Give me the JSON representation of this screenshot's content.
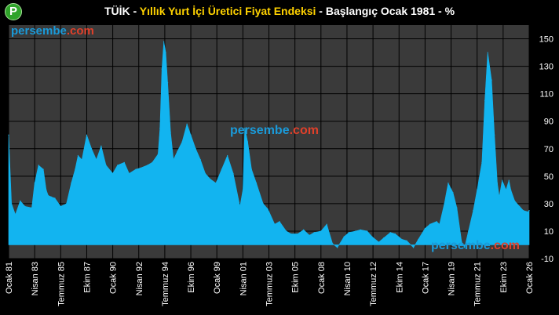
{
  "logo": {
    "glyph": "P",
    "color": "#2fa32a"
  },
  "title": {
    "part1": "TÜİK - ",
    "part2": "Yıllık Yurt İçi Üretici Fiyat Endeksi",
    "part3": " - Başlangıç Ocak 1981 - %"
  },
  "watermark": "persembe.com",
  "colors": {
    "background": "#000000",
    "plot_area": "#3a3a3a",
    "area_fill": "#12b4f0",
    "grid": "#000000",
    "title_accent": "#ffd200"
  },
  "chart_data": {
    "type": "area",
    "title": "TÜİK - Yıllık Yurt İçi Üretici Fiyat Endeksi - Başlangıç Ocak 1981 - %",
    "xlabel": "",
    "ylabel": "",
    "ylim": [
      -10,
      160
    ],
    "yticks": [
      -10,
      10,
      30,
      50,
      70,
      90,
      110,
      130,
      150
    ],
    "y_axis_position": "right",
    "grid": true,
    "x_tick_labels": [
      "Ocak 81",
      "Nisan 83",
      "Temmuz 85",
      "Ekim 87",
      "Ocak 90",
      "Nisan 92",
      "Temmuz 94",
      "Ekim 96",
      "Ocak 99",
      "Nisan 01",
      "Temmuz 03",
      "Ekim 05",
      "Ocak 08",
      "Nisan 10",
      "Temmuz 12",
      "Ekim 14",
      "Ocak 17",
      "Nisan 19",
      "Temmuz 21",
      "Ekim 23",
      "Ocak 26"
    ],
    "x": [
      "1981-01",
      "1981-04",
      "1981-08",
      "1982-01",
      "1982-06",
      "1983-01",
      "1983-04",
      "1983-08",
      "1984-01",
      "1984-04",
      "1984-06",
      "1984-09",
      "1985-01",
      "1985-07",
      "1986-01",
      "1986-06",
      "1986-10",
      "1987-01",
      "1987-05",
      "1987-10",
      "1988-03",
      "1988-08",
      "1989-01",
      "1989-06",
      "1990-01",
      "1990-06",
      "1991-01",
      "1991-06",
      "1992-01",
      "1992-06",
      "1993-01",
      "1993-06",
      "1993-12",
      "1994-02",
      "1994-04",
      "1994-06",
      "1994-08",
      "1994-10",
      "1995-01",
      "1995-04",
      "1995-08",
      "1996-01",
      "1996-06",
      "1996-10",
      "1997-03",
      "1997-08",
      "1998-01",
      "1998-06",
      "1998-12",
      "1999-06",
      "1999-12",
      "2000-06",
      "2001-01",
      "2001-04",
      "2001-06",
      "2001-09",
      "2002-01",
      "2002-06",
      "2003-01",
      "2003-06",
      "2004-01",
      "2004-06",
      "2005-01",
      "2005-06",
      "2006-01",
      "2006-07",
      "2007-01",
      "2007-06",
      "2008-01",
      "2008-07",
      "2009-01",
      "2009-06",
      "2010-01",
      "2010-06",
      "2011-01",
      "2011-06",
      "2012-01",
      "2012-06",
      "2013-01",
      "2013-06",
      "2014-01",
      "2014-06",
      "2015-01",
      "2015-06",
      "2016-01",
      "2016-06",
      "2017-01",
      "2017-06",
      "2018-01",
      "2018-04",
      "2018-09",
      "2019-01",
      "2019-06",
      "2019-10",
      "2020-03",
      "2020-06",
      "2020-10",
      "2021-03",
      "2021-07",
      "2021-12",
      "2022-03",
      "2022-06",
      "2022-10",
      "2023-01",
      "2023-04",
      "2023-06",
      "2023-09",
      "2024-01",
      "2024-04",
      "2024-06",
      "2024-10",
      "2025-03",
      "2025-07",
      "2025-12",
      "2026-01"
    ],
    "values": [
      80,
      30,
      22,
      32,
      28,
      27,
      45,
      58,
      55,
      40,
      36,
      35,
      34,
      28,
      30,
      45,
      55,
      65,
      62,
      80,
      70,
      62,
      72,
      58,
      52,
      58,
      60,
      52,
      55,
      56,
      58,
      60,
      66,
      85,
      128,
      148,
      140,
      118,
      82,
      62,
      68,
      75,
      88,
      80,
      70,
      62,
      52,
      48,
      45,
      55,
      65,
      52,
      28,
      40,
      85,
      75,
      55,
      45,
      30,
      26,
      15,
      17,
      10,
      8,
      8,
      11,
      7,
      9,
      10,
      15,
      1,
      -2,
      6,
      9,
      10,
      11,
      10,
      6,
      2,
      5,
      9,
      8,
      4,
      3,
      -2,
      4,
      12,
      15,
      17,
      15,
      30,
      45,
      38,
      27,
      2,
      -2,
      10,
      25,
      40,
      60,
      105,
      140,
      120,
      80,
      45,
      35,
      47,
      40,
      47,
      40,
      32,
      28,
      25,
      24,
      25
    ]
  }
}
